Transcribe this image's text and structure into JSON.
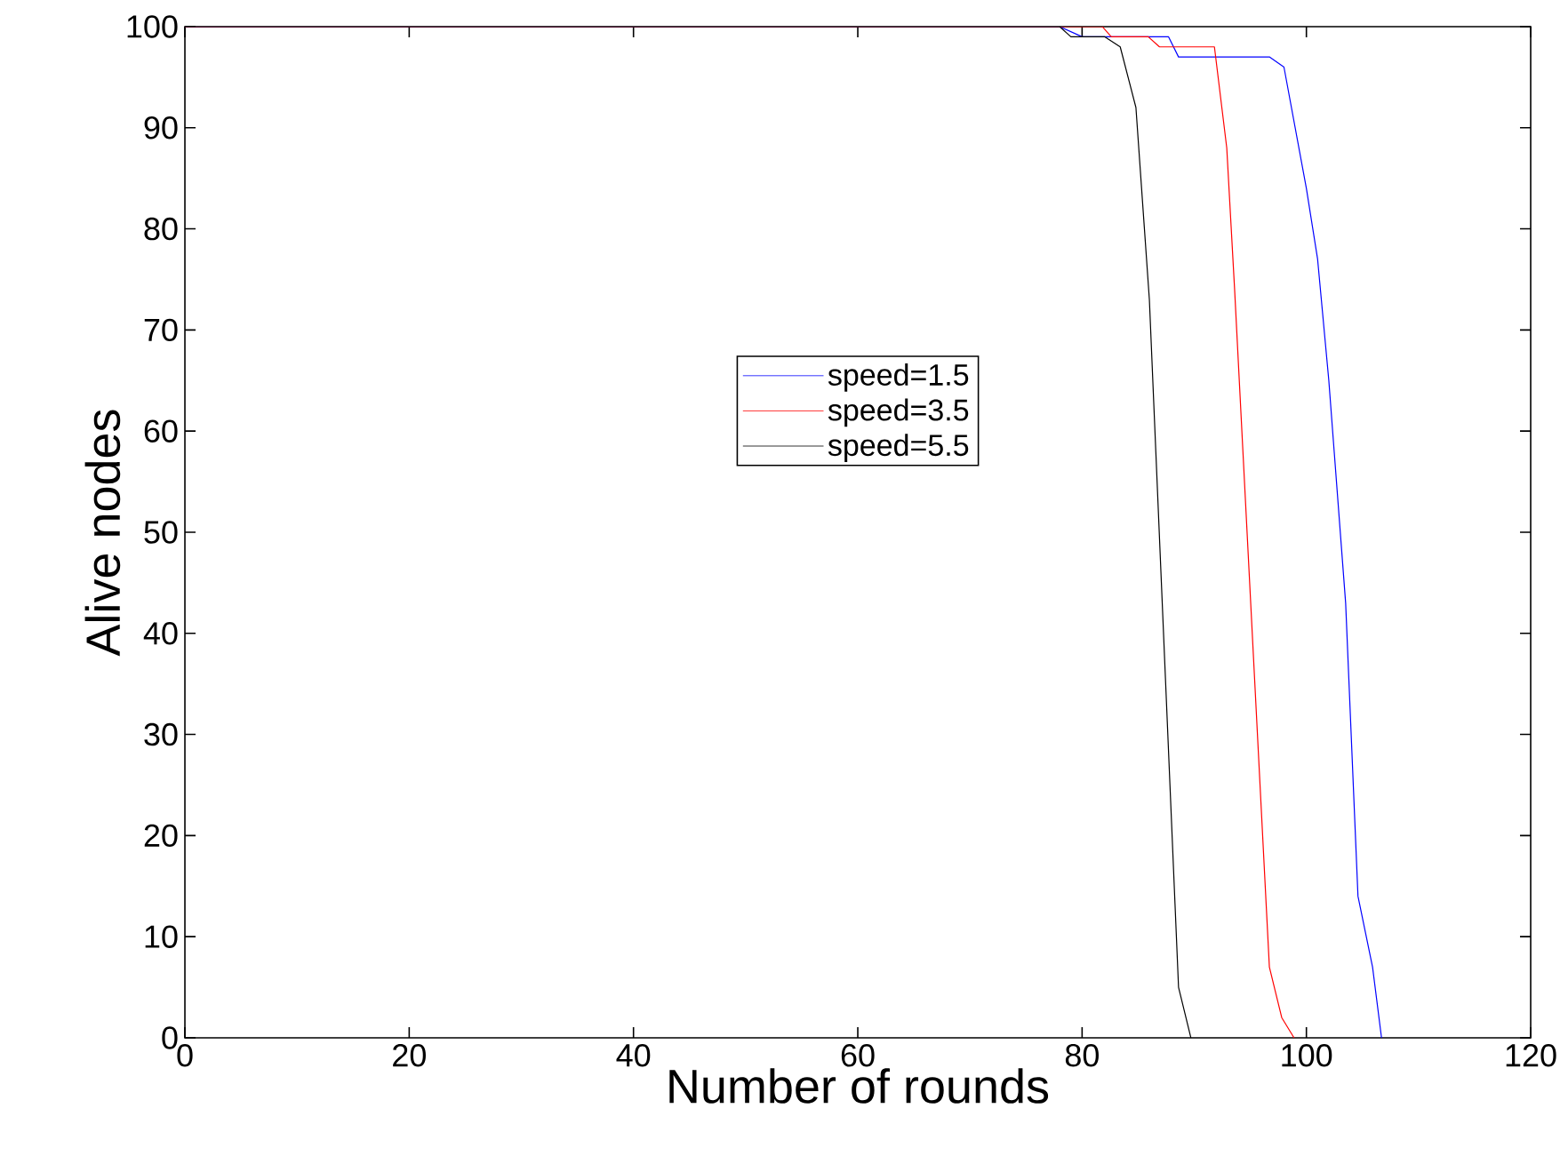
{
  "chart_data": {
    "type": "line",
    "xlabel": "Number of rounds",
    "ylabel": "Alive nodes",
    "xlim": [
      0,
      120
    ],
    "ylim": [
      0,
      100
    ],
    "xticks": [
      0,
      20,
      40,
      60,
      80,
      100,
      120
    ],
    "yticks": [
      0,
      10,
      20,
      30,
      40,
      50,
      60,
      70,
      80,
      90,
      100
    ],
    "grid": false,
    "legend": "center",
    "marker": "none",
    "line_style": "solid",
    "series": [
      {
        "name": "speed=1.5",
        "color": "#0000ff",
        "x": [
          0,
          78,
          80,
          87.7,
          88.6,
          96.7,
          98,
          99,
          100,
          101,
          102,
          103.5,
          104.6,
          105.9,
          106.7
        ],
        "values": [
          100,
          100,
          99,
          99,
          97,
          97,
          96,
          90,
          84,
          77,
          65,
          43,
          14,
          7,
          0
        ]
      },
      {
        "name": "speed=3.5",
        "color": "#ff0000",
        "x": [
          0,
          81.8,
          82.6,
          85.9,
          86.9,
          91.8,
          92.9,
          93.6,
          96.7,
          97.8,
          98.9
        ],
        "values": [
          100,
          100,
          99,
          99,
          98,
          98,
          88,
          74,
          7,
          2,
          0
        ]
      },
      {
        "name": "speed=5.5",
        "color": "#000000",
        "x": [
          0,
          78,
          79,
          82,
          83.4,
          84.8,
          86,
          88.6,
          89.7
        ],
        "values": [
          100,
          100,
          99,
          99,
          98,
          92,
          73,
          5,
          0
        ]
      }
    ]
  }
}
